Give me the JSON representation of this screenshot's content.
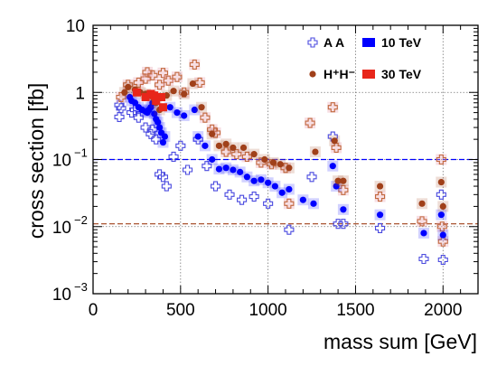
{
  "chart_data": {
    "type": "scatter",
    "xlabel": "mass sum [GeV]",
    "ylabel": "cross section [fb]",
    "xlim": [
      0,
      2200
    ],
    "ylim": [
      0.001,
      10
    ],
    "yscale": "log",
    "grid": true,
    "x_ticks": [
      {
        "value": 0,
        "label": "0"
      },
      {
        "value": 500,
        "label": "500"
      },
      {
        "value": 1000,
        "label": "1000"
      },
      {
        "value": 1500,
        "label": "1500"
      },
      {
        "value": 2000,
        "label": "2000"
      }
    ],
    "y_ticks": [
      {
        "value": 10,
        "label": "10",
        "sup": ""
      },
      {
        "value": 1,
        "label": "1",
        "sup": ""
      },
      {
        "value": 0.1,
        "label": "10",
        "sup": "−1"
      },
      {
        "value": 0.01,
        "label": "10",
        "sup": "−2"
      },
      {
        "value": 0.001,
        "label": "10",
        "sup": "−3"
      }
    ],
    "legend": {
      "placement": "top-right",
      "entries": [
        {
          "label": "A A",
          "marker": "open-cross"
        },
        {
          "label": "10 TeV",
          "marker": "filled-box",
          "color": "#0000ff"
        },
        {
          "label": "H⁺H⁻",
          "marker": "filled-circle",
          "color": "#a0401a"
        },
        {
          "label": "30 TeV",
          "marker": "filled-box",
          "color": "#e8261a"
        }
      ]
    },
    "reference_lines": [
      {
        "y": 0.1,
        "color": "#0000ff",
        "style": "dashed"
      },
      {
        "y": 0.011,
        "color": "#a0401a",
        "style": "dashed"
      }
    ],
    "series": [
      {
        "name": "A A 10 TeV",
        "marker": "open-cross",
        "color": "#4a4adf",
        "x": [
          150,
          150,
          160,
          220,
          240,
          260,
          300,
          330,
          340,
          360,
          380,
          400,
          420,
          460,
          500,
          540,
          600,
          650,
          700,
          780,
          850,
          920,
          1000,
          1120,
          1250,
          1370,
          1400,
          1430,
          1640,
          1890,
          1990,
          2000
        ],
        "y": [
          0.43,
          0.65,
          0.58,
          0.5,
          0.55,
          0.42,
          0.3,
          0.24,
          0.28,
          0.2,
          0.06,
          0.055,
          0.04,
          0.11,
          0.16,
          0.07,
          0.2,
          0.08,
          0.04,
          0.03,
          0.025,
          0.028,
          0.022,
          0.009,
          0.055,
          0.22,
          0.011,
          0.011,
          0.0095,
          0.0033,
          0.03,
          0.0032
        ]
      },
      {
        "name": "A A 30 TeV",
        "marker": "open-cross",
        "color": "#c2693f",
        "x": [
          160,
          200,
          260,
          300,
          310,
          340,
          380,
          400,
          430,
          480,
          520,
          580,
          610,
          640,
          680,
          700,
          760,
          820,
          880,
          960,
          1020,
          1100,
          1120,
          1240,
          1370,
          1390,
          1430,
          1640,
          1880,
          1990,
          1995,
          2000
        ],
        "y": [
          0.85,
          1.3,
          1.4,
          1.6,
          2.0,
          1.8,
          1.3,
          1.95,
          1.5,
          1.7,
          1.0,
          2.6,
          1.4,
          0.42,
          0.28,
          0.25,
          0.13,
          0.12,
          0.11,
          0.09,
          0.085,
          0.075,
          0.022,
          0.35,
          0.6,
          0.15,
          0.035,
          0.028,
          0.012,
          0.1,
          0.01,
          0.006
        ]
      },
      {
        "name": "H⁺H⁻ 10 TeV",
        "marker": "filled-circle",
        "color": "#0000ff",
        "x": [
          210,
          220,
          240,
          260,
          280,
          300,
          310,
          320,
          330,
          340,
          350,
          360,
          370,
          380,
          390,
          400,
          410,
          440,
          480,
          520,
          580,
          600,
          640,
          680,
          720,
          760,
          800,
          840,
          880,
          920,
          960,
          1000,
          1040,
          1080,
          1120,
          1200,
          1260,
          1370,
          1390,
          1430,
          1640,
          1890,
          1990,
          2000
        ],
        "y": [
          0.85,
          0.75,
          0.7,
          0.6,
          0.55,
          0.52,
          0.5,
          0.55,
          0.6,
          0.7,
          0.48,
          0.4,
          0.36,
          0.3,
          0.25,
          0.18,
          0.22,
          0.6,
          0.5,
          0.45,
          0.55,
          0.22,
          0.16,
          0.1,
          0.072,
          0.075,
          0.07,
          0.065,
          0.055,
          0.048,
          0.05,
          0.045,
          0.04,
          0.032,
          0.036,
          0.025,
          0.022,
          0.08,
          0.04,
          0.018,
          0.015,
          0.008,
          0.015,
          0.0075
        ]
      },
      {
        "name": "H⁺H⁻ 30 TeV",
        "marker": "filled-circle",
        "color": "#a0401a",
        "x": [
          180,
          200,
          240,
          270,
          300,
          330,
          350,
          360,
          380,
          420,
          460,
          520,
          570,
          620,
          680,
          720,
          760,
          800,
          860,
          920,
          980,
          1030,
          1070,
          1120,
          1270,
          1380,
          1400,
          1430,
          1640,
          1880,
          1990,
          2000
        ],
        "y": [
          1.0,
          1.2,
          1.1,
          1.0,
          0.95,
          0.9,
          0.8,
          0.7,
          0.55,
          0.9,
          1.05,
          0.95,
          1.35,
          0.6,
          0.24,
          0.16,
          0.17,
          0.15,
          0.15,
          0.12,
          0.1,
          0.09,
          0.085,
          0.075,
          0.13,
          0.19,
          0.048,
          0.048,
          0.04,
          0.022,
          0.046,
          0.02
        ]
      },
      {
        "name": "30 TeV cluster",
        "marker": "filled-box",
        "color": "#e8261a",
        "x": [
          250,
          300,
          330,
          350,
          360,
          390,
          400
        ],
        "y": [
          1.0,
          0.85,
          0.95,
          0.9,
          0.75,
          0.85,
          0.6
        ]
      }
    ]
  }
}
